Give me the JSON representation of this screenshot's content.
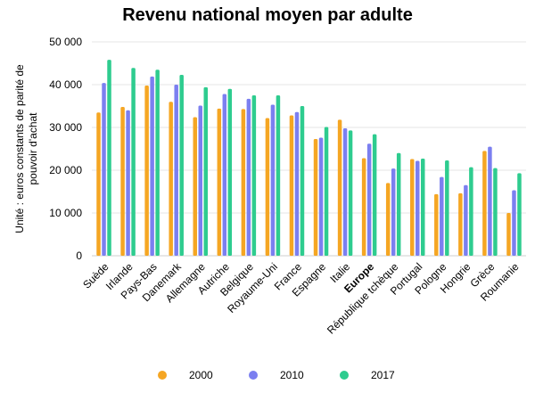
{
  "chart_data": {
    "type": "bar",
    "title": "Revenu national moyen par adulte",
    "ylabel_lines": [
      "Unité : euros constants de parité de",
      "pouvoir d'achat"
    ],
    "ylim": [
      0,
      50000
    ],
    "yticks": [
      0,
      10000,
      20000,
      30000,
      40000,
      50000
    ],
    "ytick_labels": [
      "0",
      "10 000",
      "20 000",
      "30 000",
      "40 000",
      "50 000"
    ],
    "grid": true,
    "legend_position": "bottom",
    "highlight_category": "Europe",
    "categories": [
      "Suède",
      "Irlande",
      "Pays-Bas",
      "Danemark",
      "Allemagne",
      "Autriche",
      "Belgique",
      "Royaume-Uni",
      "France",
      "Espagne",
      "Italie",
      "Europe",
      "République tchèque",
      "Portugal",
      "Pologne",
      "Hongrie",
      "Grèce",
      "Roumanie"
    ],
    "series": [
      {
        "name": "2000",
        "color": "#f5a623",
        "values": [
          33500,
          34800,
          39800,
          36000,
          32400,
          34400,
          34300,
          32200,
          32800,
          27300,
          31800,
          22800,
          17000,
          22600,
          14400,
          14600,
          24500,
          10000
        ]
      },
      {
        "name": "2010",
        "color": "#7b7ff0",
        "values": [
          40400,
          34000,
          41900,
          40000,
          35100,
          37800,
          36700,
          35300,
          33600,
          27600,
          29800,
          26200,
          20400,
          22200,
          18400,
          16500,
          25500,
          15300
        ]
      },
      {
        "name": "2017",
        "color": "#2ecc8f",
        "values": [
          45800,
          43900,
          43500,
          42300,
          39400,
          39000,
          37500,
          37500,
          35000,
          30100,
          29300,
          28400,
          24000,
          22700,
          22300,
          20700,
          20500,
          19300
        ]
      }
    ]
  }
}
